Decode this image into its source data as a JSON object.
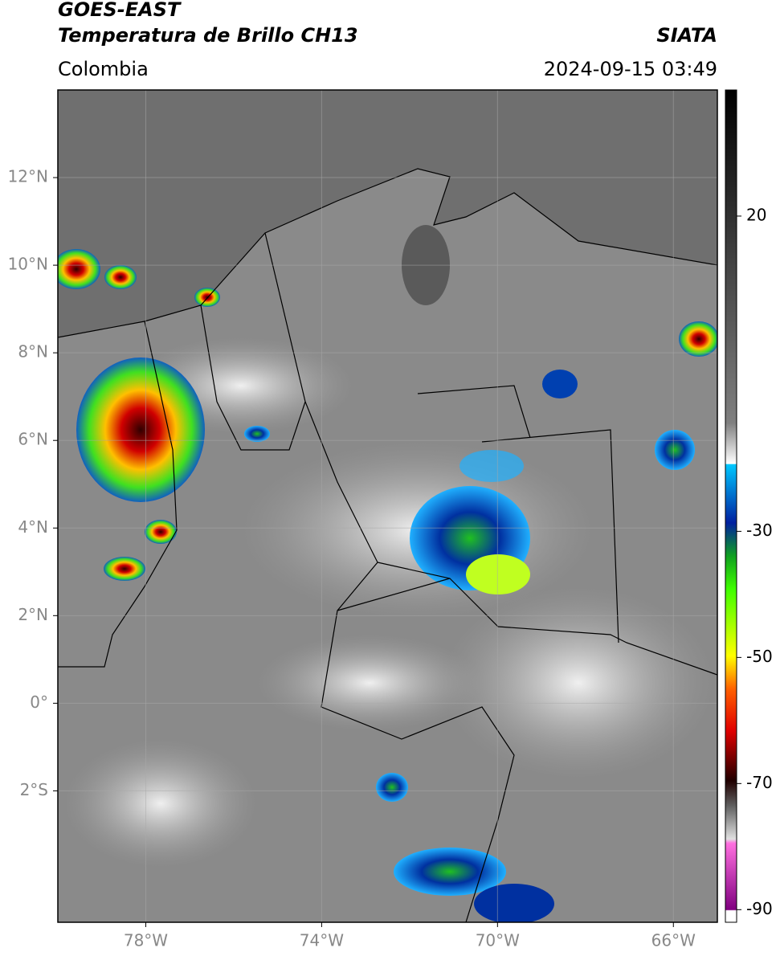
{
  "header": {
    "title": "GOES-EAST",
    "subtitle": "Temperatura de Brillo CH13",
    "source": "SIATA",
    "region": "Colombia",
    "datetime": "2024-09-15 03:49"
  },
  "map": {
    "xlim": [
      -80,
      -65
    ],
    "ylim": [
      -5,
      14
    ],
    "xticks": [
      {
        "value": -78,
        "label": "78°W"
      },
      {
        "value": -74,
        "label": "74°W"
      },
      {
        "value": -70,
        "label": "70°W"
      },
      {
        "value": -66,
        "label": "66°W"
      }
    ],
    "yticks": [
      {
        "value": 12,
        "label": "12°N"
      },
      {
        "value": 10,
        "label": "10°N"
      },
      {
        "value": 8,
        "label": "8°N"
      },
      {
        "value": 6,
        "label": "6°N"
      },
      {
        "value": 4,
        "label": "4°N"
      },
      {
        "value": 2,
        "label": "2°N"
      },
      {
        "value": 0,
        "label": "0°"
      },
      {
        "value": -2,
        "label": "2°S"
      }
    ],
    "grid": true
  },
  "colorbar": {
    "lim": [
      -92,
      40
    ],
    "ticks": [
      20,
      -30,
      -50,
      -70,
      -90
    ]
  }
}
